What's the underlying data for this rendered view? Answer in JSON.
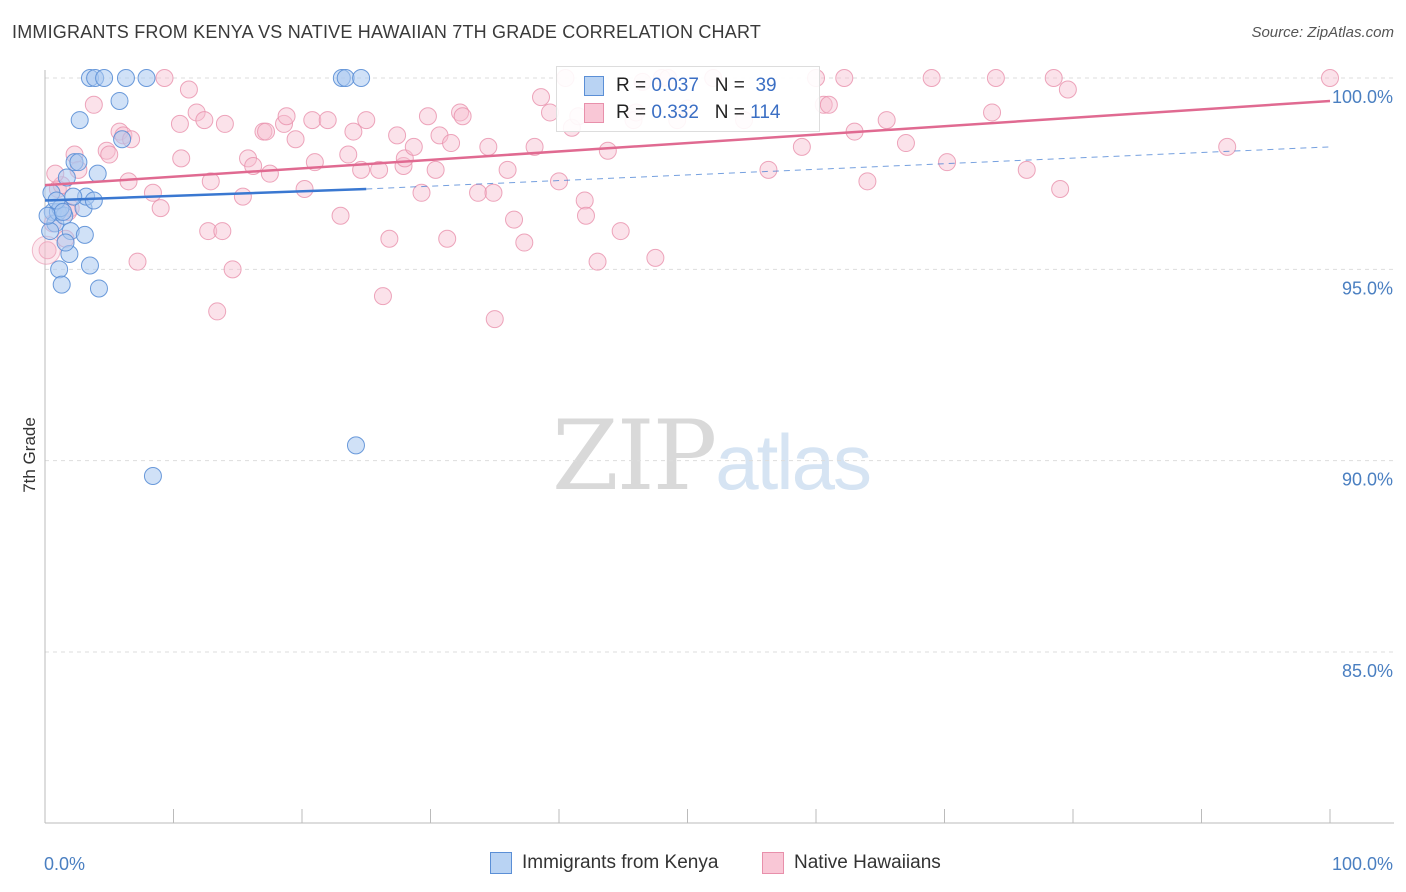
{
  "title": "IMMIGRANTS FROM KENYA VS NATIVE HAWAIIAN 7TH GRADE CORRELATION CHART",
  "source": "Source: ZipAtlas.com",
  "watermark": {
    "zip": "ZIP",
    "atlas": "atlas"
  },
  "legend": {
    "kenya": {
      "r_label": "R =",
      "r_value": "0.037",
      "n_label": "N =",
      "n_value": "39"
    },
    "hawaii": {
      "r_label": "R =",
      "r_value": "0.332",
      "n_label": "N =",
      "n_value": "114"
    }
  },
  "bottom_legend": {
    "kenya": "Immigrants from Kenya",
    "hawaii": "Native Hawaiians"
  },
  "colors": {
    "kenya_fill": "#a9c8f0",
    "kenya_stroke": "#5b8fd6",
    "kenya_line": "#3a78d1",
    "hawaii_fill": "#f7bfd0",
    "hawaii_stroke": "#e890ab",
    "hawaii_line": "#e06a91",
    "axis_label": "#4a7fc1"
  },
  "chart_data": {
    "type": "scatter",
    "title": "IMMIGRANTS FROM KENYA VS NATIVE HAWAIIAN 7TH GRADE CORRELATION CHART",
    "xlabel": "",
    "ylabel": "7th Grade",
    "xlim": [
      0,
      100
    ],
    "ylim": [
      80.5,
      100.8
    ],
    "x_tick_labels": [
      "0.0%",
      "100.0%"
    ],
    "y_ticks": [
      100,
      95,
      90,
      85
    ],
    "y_tick_labels": [
      "100.0%",
      "95.0%",
      "90.0%",
      "85.0%"
    ],
    "grid": true,
    "series": [
      {
        "name": "Immigrants from Kenya",
        "r": 0.037,
        "n": 39,
        "trend": {
          "x": [
            0,
            25
          ],
          "y": [
            96.8,
            97.1
          ],
          "dashed_to": [
            100,
            98.2
          ]
        },
        "points": [
          [
            0.5,
            97.0
          ],
          [
            0.6,
            96.5
          ],
          [
            0.8,
            96.2
          ],
          [
            1.0,
            96.5
          ],
          [
            1.1,
            95.0
          ],
          [
            1.3,
            94.6
          ],
          [
            1.5,
            96.4
          ],
          [
            1.7,
            97.4
          ],
          [
            1.9,
            95.4
          ],
          [
            2.0,
            96.0
          ],
          [
            2.3,
            97.8
          ],
          [
            2.6,
            97.8
          ],
          [
            2.7,
            98.9
          ],
          [
            3.0,
            96.6
          ],
          [
            3.1,
            95.9
          ],
          [
            3.2,
            96.9
          ],
          [
            3.5,
            95.1
          ],
          [
            3.8,
            96.8
          ],
          [
            4.1,
            97.5
          ],
          [
            4.2,
            94.5
          ],
          [
            3.5,
            100.0
          ],
          [
            3.9,
            100.0
          ],
          [
            4.6,
            100.0
          ],
          [
            6.3,
            100.0
          ],
          [
            7.9,
            100.0
          ],
          [
            5.8,
            99.4
          ],
          [
            6.0,
            98.4
          ],
          [
            8.4,
            89.6
          ],
          [
            23.1,
            100.0
          ],
          [
            23.4,
            100.0
          ],
          [
            24.6,
            100.0
          ],
          [
            24.2,
            90.4
          ],
          [
            0.4,
            96.0
          ],
          [
            1.2,
            96.6
          ],
          [
            0.9,
            96.8
          ],
          [
            1.6,
            95.7
          ],
          [
            0.2,
            96.4
          ],
          [
            1.4,
            96.5
          ],
          [
            2.2,
            96.9
          ]
        ]
      },
      {
        "name": "Native Hawaiians",
        "r": 0.332,
        "n": 114,
        "trend": {
          "x": [
            0,
            100
          ],
          "y": [
            97.2,
            99.4
          ]
        },
        "points": [
          [
            0.2,
            95.5
          ],
          [
            0.6,
            96.2
          ],
          [
            1.0,
            97.1
          ],
          [
            1.3,
            97.2
          ],
          [
            1.6,
            95.8
          ],
          [
            2.0,
            96.6
          ],
          [
            2.3,
            98.0
          ],
          [
            2.6,
            97.6
          ],
          [
            3.8,
            99.3
          ],
          [
            4.8,
            98.1
          ],
          [
            5.0,
            98.0
          ],
          [
            5.8,
            98.6
          ],
          [
            6.1,
            98.5
          ],
          [
            6.5,
            97.3
          ],
          [
            6.7,
            98.4
          ],
          [
            7.2,
            95.2
          ],
          [
            8.4,
            97.0
          ],
          [
            9.0,
            96.6
          ],
          [
            9.3,
            100.0
          ],
          [
            10.5,
            98.8
          ],
          [
            10.6,
            97.9
          ],
          [
            11.2,
            99.7
          ],
          [
            11.8,
            99.1
          ],
          [
            12.4,
            98.9
          ],
          [
            12.7,
            96.0
          ],
          [
            12.9,
            97.3
          ],
          [
            13.4,
            93.9
          ],
          [
            13.8,
            96.0
          ],
          [
            14.0,
            98.8
          ],
          [
            14.6,
            95.0
          ],
          [
            15.4,
            96.9
          ],
          [
            15.8,
            97.9
          ],
          [
            16.2,
            97.7
          ],
          [
            17.0,
            98.6
          ],
          [
            17.2,
            98.6
          ],
          [
            17.5,
            97.5
          ],
          [
            18.6,
            98.8
          ],
          [
            18.8,
            99.0
          ],
          [
            19.5,
            98.4
          ],
          [
            20.2,
            97.1
          ],
          [
            20.8,
            98.9
          ],
          [
            21.0,
            97.8
          ],
          [
            22.0,
            98.9
          ],
          [
            23.0,
            96.4
          ],
          [
            23.6,
            98.0
          ],
          [
            24.0,
            98.6
          ],
          [
            24.6,
            97.6
          ],
          [
            25.0,
            98.9
          ],
          [
            26.0,
            97.6
          ],
          [
            26.3,
            94.3
          ],
          [
            26.8,
            95.8
          ],
          [
            27.4,
            98.5
          ],
          [
            27.9,
            97.7
          ],
          [
            28.0,
            97.9
          ],
          [
            28.7,
            98.2
          ],
          [
            29.3,
            97.0
          ],
          [
            29.8,
            99.0
          ],
          [
            30.4,
            97.6
          ],
          [
            30.7,
            98.5
          ],
          [
            31.3,
            95.8
          ],
          [
            31.6,
            98.3
          ],
          [
            32.3,
            99.1
          ],
          [
            32.5,
            99.0
          ],
          [
            33.7,
            97.0
          ],
          [
            34.5,
            98.2
          ],
          [
            34.9,
            97.0
          ],
          [
            35.0,
            93.7
          ],
          [
            36.0,
            97.6
          ],
          [
            36.5,
            96.3
          ],
          [
            37.3,
            95.7
          ],
          [
            38.1,
            98.2
          ],
          [
            38.6,
            99.5
          ],
          [
            39.3,
            99.1
          ],
          [
            40.0,
            97.3
          ],
          [
            40.5,
            100.0
          ],
          [
            41.0,
            98.7
          ],
          [
            41.5,
            99.0
          ],
          [
            42.0,
            96.8
          ],
          [
            42.1,
            96.4
          ],
          [
            43.0,
            95.2
          ],
          [
            43.8,
            98.1
          ],
          [
            44.8,
            96.0
          ],
          [
            45.8,
            98.9
          ],
          [
            46.5,
            99.9
          ],
          [
            47.5,
            95.3
          ],
          [
            48.0,
            100.0
          ],
          [
            49.2,
            98.9
          ],
          [
            50.0,
            99.2
          ],
          [
            52.0,
            100.0
          ],
          [
            56.3,
            97.6
          ],
          [
            58.9,
            98.2
          ],
          [
            60.6,
            99.3
          ],
          [
            61.0,
            99.3
          ],
          [
            62.2,
            100.0
          ],
          [
            63.0,
            98.6
          ],
          [
            64.0,
            97.3
          ],
          [
            65.5,
            98.9
          ],
          [
            67.0,
            98.3
          ],
          [
            69.0,
            100.0
          ],
          [
            70.2,
            97.8
          ],
          [
            73.7,
            99.1
          ],
          [
            74.0,
            100.0
          ],
          [
            76.4,
            97.6
          ],
          [
            78.5,
            100.0
          ],
          [
            79.0,
            97.1
          ],
          [
            79.6,
            99.7
          ],
          [
            92.0,
            98.2
          ],
          [
            100.0,
            100.0
          ],
          [
            54.4,
            98.9
          ],
          [
            48.5,
            100.0
          ],
          [
            60.0,
            100.0
          ],
          [
            46.0,
            99.1
          ],
          [
            0.8,
            97.5
          ],
          [
            1.8,
            96.5
          ]
        ]
      }
    ]
  }
}
